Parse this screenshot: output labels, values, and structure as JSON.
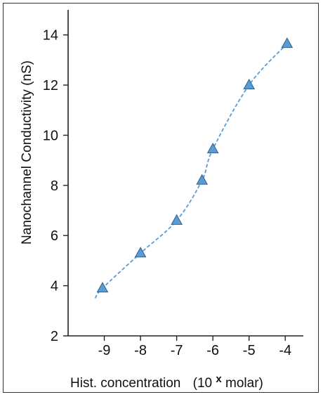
{
  "chart_data": {
    "type": "line",
    "title": "",
    "xlabel": "Hist. concentration",
    "xlabel_unit": {
      "base": "(10",
      "exponent": "x",
      "suffix": " molar)"
    },
    "ylabel": "Nanochannel Conductivity (nS)",
    "xlim": [
      -10,
      -3.5
    ],
    "ylim": [
      2,
      15
    ],
    "xticks": [
      -9,
      -8,
      -7,
      -6,
      -5,
      -4
    ],
    "yticks": [
      2,
      4,
      6,
      8,
      10,
      12,
      14
    ],
    "grid": false,
    "marker": "triangle",
    "line_style": "dashed",
    "color": "#5b9bd5",
    "marker_edge_color": "#2e5f8a",
    "trend_start": {
      "x": -9.25,
      "y": 3.5
    },
    "series": [
      {
        "x": [
          -9.05,
          -8.0,
          -7.0,
          -6.3,
          -6.0,
          -5.0,
          -3.95
        ],
        "y": [
          3.9,
          5.3,
          6.6,
          8.2,
          9.45,
          12.0,
          13.65
        ]
      }
    ]
  }
}
